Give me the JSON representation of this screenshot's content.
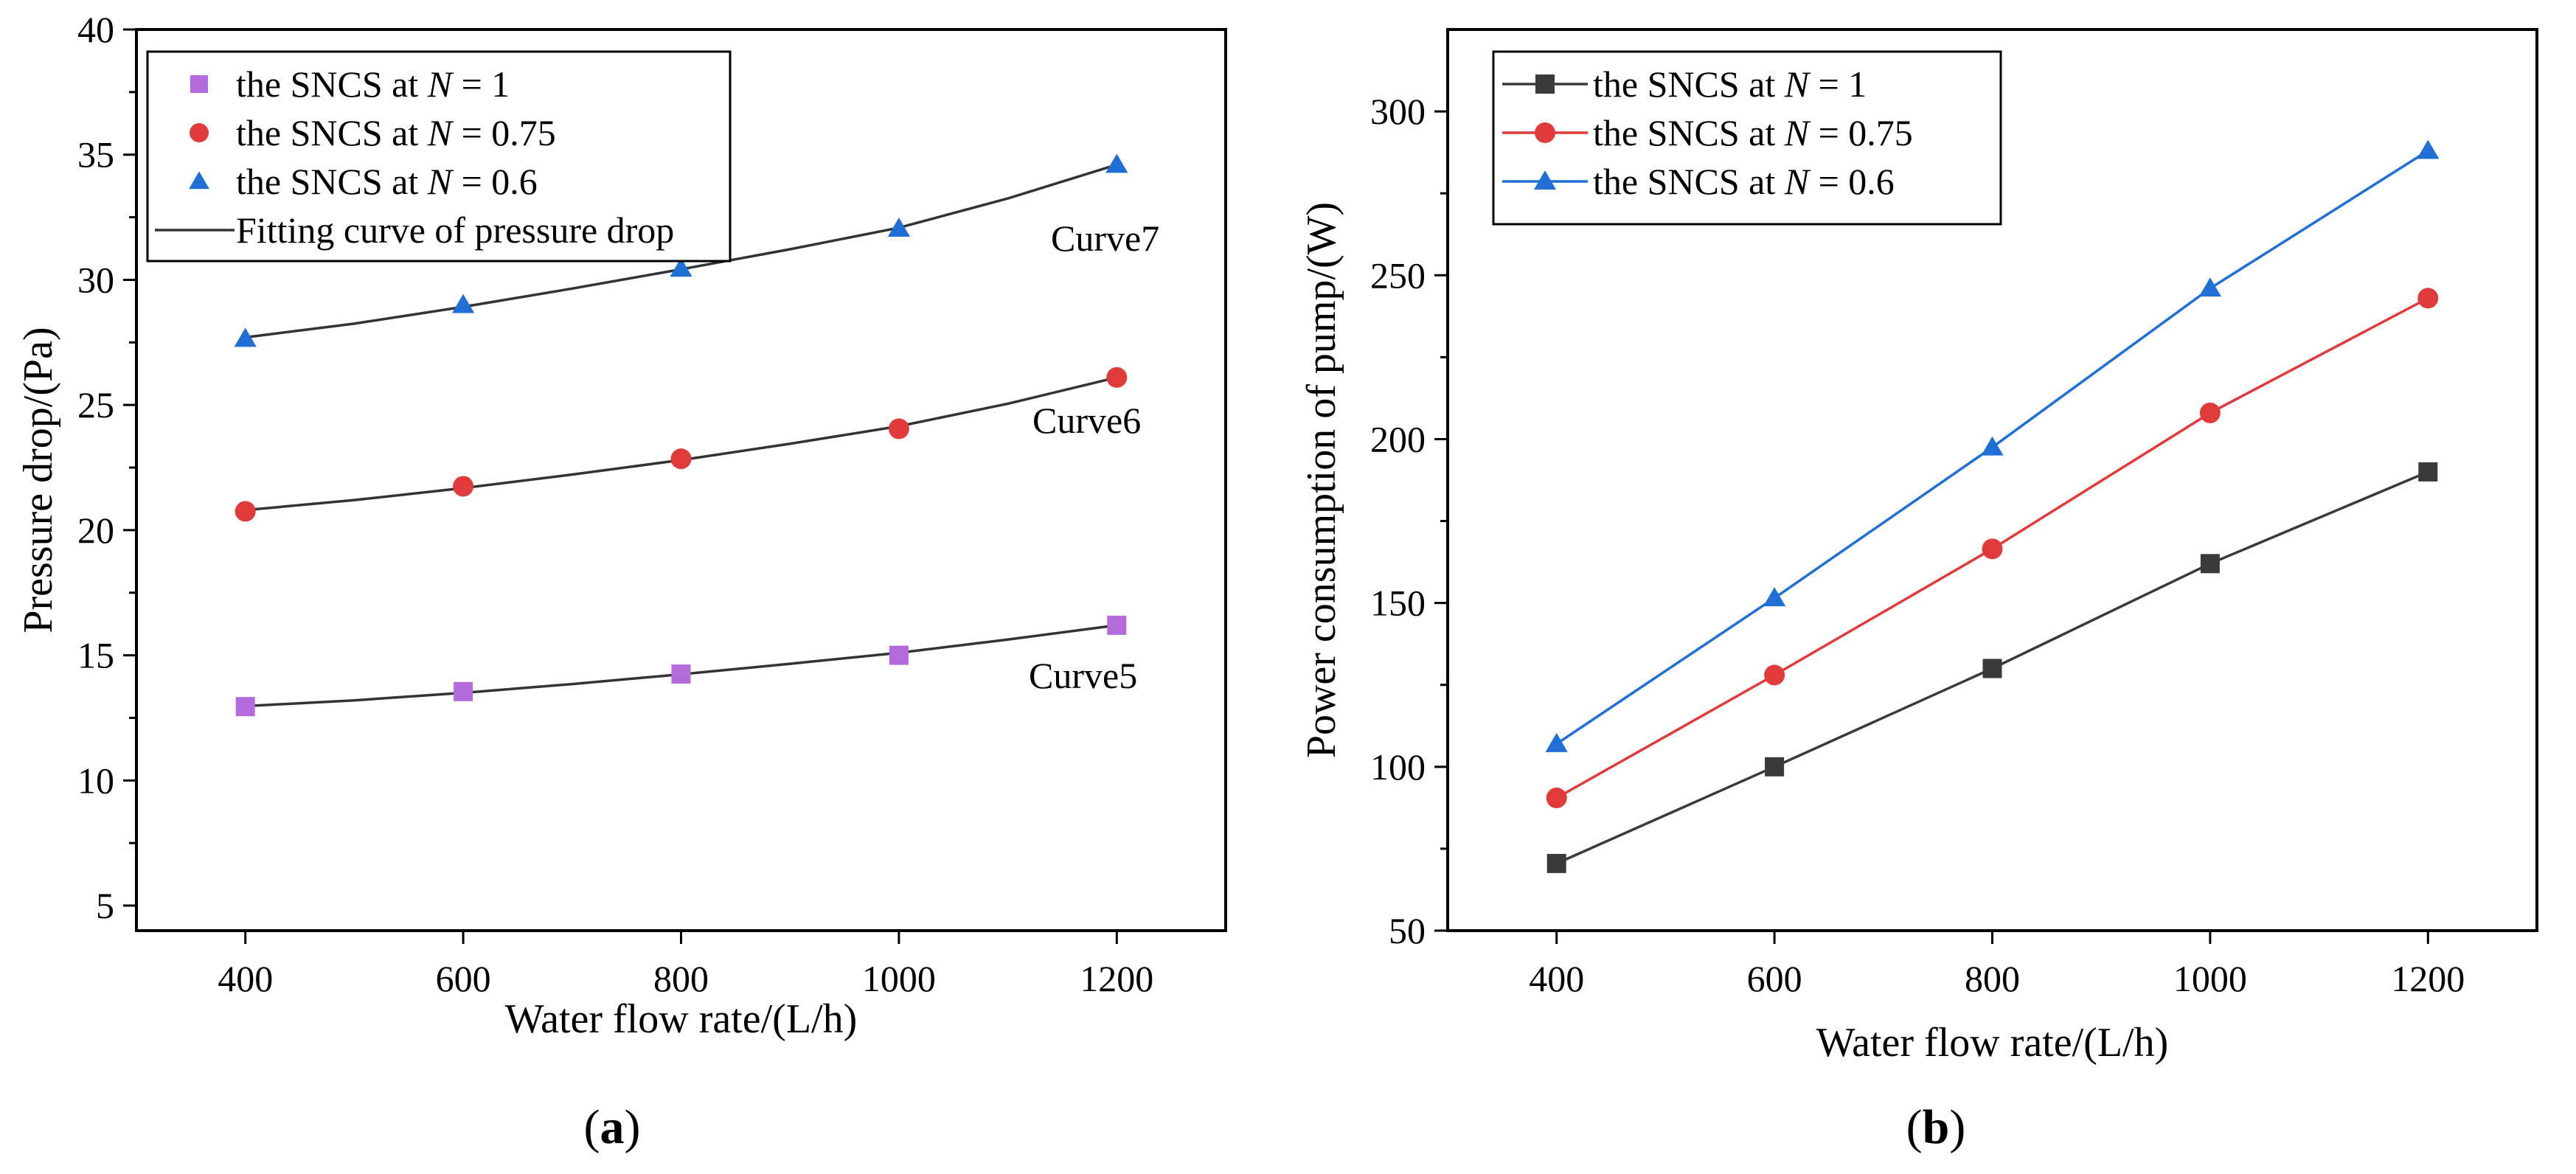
{
  "chart_data": [
    {
      "id": "a",
      "type": "scatter",
      "panel_label": "a",
      "xlabel": "Water flow rate/(L/h)",
      "ylabel": "Pressure drop/(Pa)",
      "xlim": [
        300,
        1300
      ],
      "ylim": [
        4,
        40
      ],
      "xticks": [
        400,
        600,
        800,
        1000,
        1200
      ],
      "yticks": [
        5,
        10,
        15,
        20,
        25,
        30,
        35,
        40
      ],
      "x": [
        400,
        600,
        800,
        1000,
        1200
      ],
      "series": [
        {
          "name": "the SNCS at N = 1",
          "legend_prefix": "the SNCS at ",
          "legend_var": "N",
          "legend_suffix": " = 1",
          "marker": "square",
          "color": "#b36bdc",
          "values": [
            12.95,
            13.55,
            14.25,
            15.0,
            16.2
          ]
        },
        {
          "name": "the SNCS at N = 0.75",
          "legend_prefix": "the SNCS at ",
          "legend_var": "N",
          "legend_suffix": " = 0.75",
          "marker": "circle",
          "color": "#e03a3a",
          "values": [
            20.75,
            21.75,
            22.85,
            24.05,
            26.1
          ]
        },
        {
          "name": "the SNCS at N = 0.6",
          "legend_prefix": "the SNCS at ",
          "legend_var": "N",
          "legend_suffix": " = 0.6",
          "marker": "triangle",
          "color": "#1f6fd6",
          "values": [
            27.65,
            29.0,
            30.45,
            32.05,
            34.6
          ]
        }
      ],
      "fit_legend": "Fitting curve of pressure drop",
      "fit_color": "#333333",
      "fits": [
        {
          "label": "Curve5",
          "series": 0,
          "x": [
            400,
            500,
            600,
            700,
            800,
            900,
            1000,
            1100,
            1200
          ],
          "y": [
            12.97,
            13.2,
            13.5,
            13.85,
            14.24,
            14.66,
            15.1,
            15.63,
            16.2
          ]
        },
        {
          "label": "Curve6",
          "series": 1,
          "x": [
            400,
            500,
            600,
            700,
            800,
            900,
            1000,
            1100,
            1200
          ],
          "y": [
            20.8,
            21.2,
            21.68,
            22.22,
            22.8,
            23.45,
            24.15,
            25.05,
            26.1
          ]
        },
        {
          "label": "Curve7",
          "series": 2,
          "x": [
            400,
            500,
            600,
            700,
            800,
            900,
            1000,
            1100,
            1200
          ],
          "y": [
            27.7,
            28.25,
            28.92,
            29.65,
            30.42,
            31.22,
            32.08,
            33.25,
            34.6
          ]
        }
      ]
    },
    {
      "id": "b",
      "type": "line",
      "panel_label": "b",
      "xlabel": "Water flow rate/(L/h)",
      "ylabel": "Power consumption of pump/(W)",
      "xlim": [
        300,
        1300
      ],
      "ylim": [
        50,
        325
      ],
      "xticks": [
        400,
        600,
        800,
        1000,
        1200
      ],
      "yticks": [
        50,
        100,
        150,
        200,
        250,
        300
      ],
      "x": [
        400,
        600,
        800,
        1000,
        1200
      ],
      "series": [
        {
          "name": "the SNCS at N = 1",
          "legend_prefix": "the SNCS at ",
          "legend_var": "N",
          "legend_suffix": " = 1",
          "marker": "square",
          "color": "#3a3a3a",
          "values": [
            70.5,
            100,
            130,
            162,
            190
          ]
        },
        {
          "name": "the SNCS at N = 0.75",
          "legend_prefix": "the SNCS at ",
          "legend_var": "N",
          "legend_suffix": " = 0.75",
          "marker": "circle",
          "color": "#e03a3a",
          "values": [
            90.5,
            128,
            166.5,
            208,
            243
          ]
        },
        {
          "name": "the SNCS at N = 0.6",
          "legend_prefix": "the SNCS at ",
          "legend_var": "N",
          "legend_suffix": " = 0.6",
          "marker": "triangle",
          "color": "#1f6fd6",
          "values": [
            107,
            151.5,
            197.5,
            246,
            288
          ]
        }
      ]
    }
  ]
}
